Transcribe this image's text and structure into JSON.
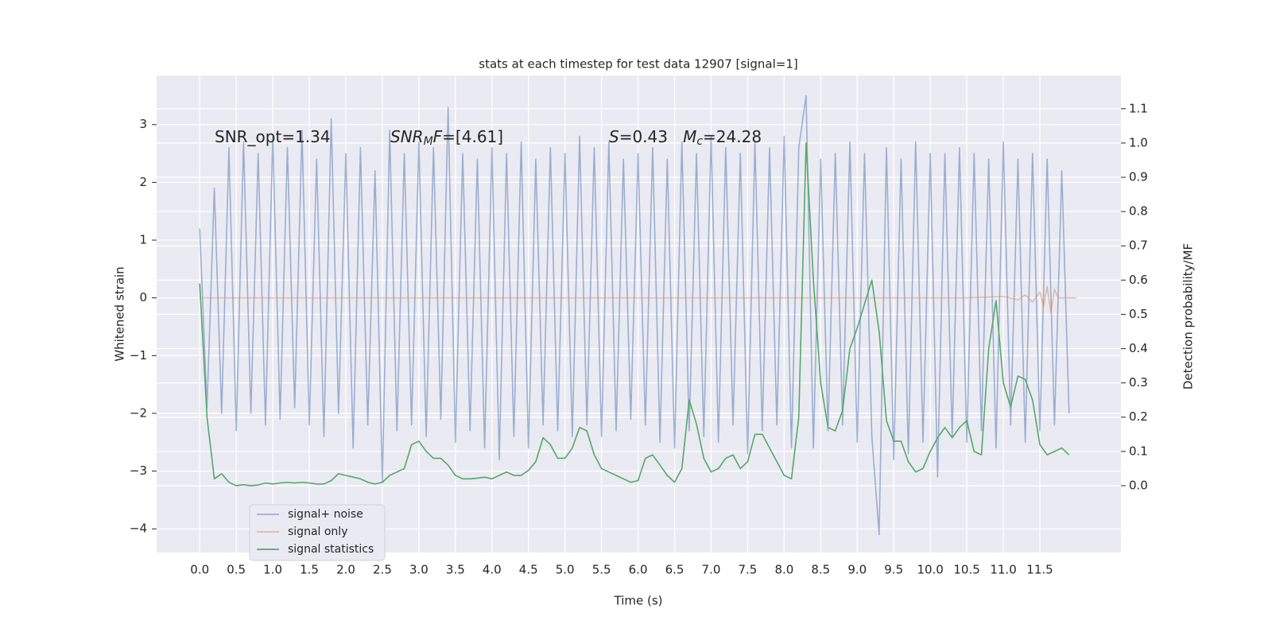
{
  "chart_data": {
    "type": "line",
    "title": "stats at each timestep for test data 12907 [signal=1]",
    "xlabel": "Time (s)",
    "ylabel": "Whitened strain",
    "y2label": "Detection probability/MF",
    "annotations": [
      [
        {
          "text": "SNR_opt=1.34",
          "style": "normal"
        }
      ],
      [
        {
          "text": "SNR",
          "style": "italic"
        },
        {
          "text": "M",
          "style": "sub"
        },
        {
          "text": "F",
          "style": "italic"
        },
        {
          "text": "=[4.61]",
          "style": "normal"
        }
      ],
      [
        {
          "text": "S",
          "style": "italic"
        },
        {
          "text": "=0.43   ",
          "style": "normal"
        },
        {
          "text": "M",
          "style": "italic"
        },
        {
          "text": "c",
          "style": "sub"
        },
        {
          "text": "=24.28",
          "style": "normal"
        }
      ]
    ],
    "xlim": [
      -0.59,
      12.61
    ],
    "ylim": [
      -4.41,
      3.85
    ],
    "y2lim": [
      -0.195,
      1.197
    ],
    "xticks": [
      {
        "value": 0,
        "label": "0.0"
      },
      {
        "value": 0.5,
        "label": "0.5"
      },
      {
        "value": 1,
        "label": "1.0"
      },
      {
        "value": 1.5,
        "label": "1.5"
      },
      {
        "value": 2,
        "label": "2.0"
      },
      {
        "value": 2.5,
        "label": "2.5"
      },
      {
        "value": 3,
        "label": "3.0"
      },
      {
        "value": 3.5,
        "label": "3.5"
      },
      {
        "value": 4,
        "label": "4.0"
      },
      {
        "value": 4.5,
        "label": "4.5"
      },
      {
        "value": 5,
        "label": "5.0"
      },
      {
        "value": 5.5,
        "label": "5.5"
      },
      {
        "value": 6,
        "label": "6.0"
      },
      {
        "value": 6.5,
        "label": "6.5"
      },
      {
        "value": 7,
        "label": "7.0"
      },
      {
        "value": 7.5,
        "label": "7.5"
      },
      {
        "value": 8,
        "label": "8.0"
      },
      {
        "value": 8.5,
        "label": "8.5"
      },
      {
        "value": 9,
        "label": "9.0"
      },
      {
        "value": 9.5,
        "label": "9.5"
      },
      {
        "value": 10,
        "label": "10.0"
      },
      {
        "value": 10.5,
        "label": "10.5"
      },
      {
        "value": 11,
        "label": "11.0"
      },
      {
        "value": 11.5,
        "label": "11.5"
      }
    ],
    "yticks": [
      {
        "value": -4,
        "label": "−4"
      },
      {
        "value": -3,
        "label": "−3"
      },
      {
        "value": -2,
        "label": "−2"
      },
      {
        "value": -1,
        "label": "−1"
      },
      0,
      1,
      2,
      3
    ],
    "y2ticks": [
      {
        "value": 0,
        "label": "0.0"
      },
      {
        "value": 0.1,
        "label": "0.1"
      },
      {
        "value": 0.2,
        "label": "0.2"
      },
      {
        "value": 0.3,
        "label": "0.3"
      },
      {
        "value": 0.4,
        "label": "0.4"
      },
      {
        "value": 0.5,
        "label": "0.5"
      },
      {
        "value": 0.6,
        "label": "0.6"
      },
      {
        "value": 0.7,
        "label": "0.7"
      },
      {
        "value": 0.8,
        "label": "0.8"
      },
      {
        "value": 0.9,
        "label": "0.9"
      },
      {
        "value": 1,
        "label": "1.0"
      },
      {
        "value": 1.1,
        "label": "1.1"
      }
    ],
    "grid": true,
    "legend": "lower left",
    "series": [
      {
        "name": "signal+ noise",
        "color": "#4c72b0",
        "opacity": 0.5,
        "x": [
          0,
          0.1,
          0.2,
          0.3,
          0.4,
          0.5,
          0.6,
          0.7,
          0.8,
          0.9,
          1,
          1.1,
          1.2,
          1.3,
          1.4,
          1.5,
          1.6,
          1.7,
          1.8,
          1.9,
          2,
          2.1,
          2.2,
          2.3,
          2.4,
          2.5,
          2.6,
          2.7,
          2.8,
          2.9,
          3,
          3.1,
          3.2,
          3.3,
          3.4,
          3.5,
          3.6,
          3.7,
          3.8,
          3.9,
          4,
          4.1,
          4.2,
          4.3,
          4.4,
          4.5,
          4.6,
          4.7,
          4.8,
          4.9,
          5,
          5.1,
          5.2,
          5.3,
          5.4,
          5.5,
          5.6,
          5.7,
          5.8,
          5.9,
          6,
          6.1,
          6.2,
          6.3,
          6.4,
          6.5,
          6.6,
          6.7,
          6.8,
          6.9,
          7,
          7.1,
          7.2,
          7.3,
          7.4,
          7.5,
          7.6,
          7.7,
          7.8,
          7.9,
          8,
          8.1,
          8.2,
          8.3,
          8.4,
          8.5,
          8.6,
          8.7,
          8.8,
          8.9,
          9,
          9.1,
          9.2,
          9.3,
          9.4,
          9.5,
          9.6,
          9.7,
          9.8,
          9.9,
          10,
          10.1,
          10.2,
          10.3,
          10.4,
          10.5,
          10.6,
          10.7,
          10.8,
          10.9,
          11,
          11.1,
          11.2,
          11.3,
          11.4,
          11.5,
          11.6,
          11.7,
          11.8,
          11.9
        ],
        "values": [
          1.2,
          -1.9,
          1.9,
          -2.0,
          2.6,
          -2.3,
          2.7,
          -2.0,
          2.5,
          -2.2,
          2.8,
          -2.1,
          2.6,
          -1.9,
          2.9,
          -2.2,
          2.4,
          -2.4,
          3.1,
          -2.0,
          2.5,
          -2.6,
          2.6,
          -2.2,
          2.2,
          -3.2,
          2.9,
          -2.3,
          2.5,
          -2.2,
          2.7,
          -2.4,
          2.6,
          -2.1,
          3.3,
          -2.5,
          2.5,
          -2.3,
          2.4,
          -2.6,
          2.6,
          -2.8,
          2.5,
          -2.4,
          2.7,
          -2.6,
          2.4,
          -2.2,
          2.6,
          -2.3,
          2.5,
          -2.4,
          2.8,
          -2.2,
          2.6,
          -2.4,
          2.7,
          -2.3,
          2.4,
          -2.1,
          2.5,
          -2.2,
          2.6,
          -2.5,
          2.4,
          -2.6,
          2.7,
          -2.3,
          2.5,
          -2.4,
          2.8,
          -2.5,
          2.6,
          -2.2,
          2.5,
          -2.7,
          2.7,
          -2.3,
          2.6,
          -2.2,
          2.8,
          -2.6,
          2.6,
          3.5,
          -2.6,
          2.4,
          -2.3,
          2.5,
          -2.2,
          2.7,
          -2.5,
          2.5,
          -2.4,
          -4.1,
          2.6,
          -2.8,
          2.4,
          -2.7,
          2.7,
          -2.5,
          2.5,
          -3.1,
          2.5,
          -2.4,
          2.6,
          -2.5,
          2.5,
          -2.3,
          2.4,
          -2.6,
          2.7,
          -2.2,
          2.4,
          -2.5,
          2.5,
          -2.3,
          2.4,
          -2.2,
          2.2,
          -2.0
        ]
      },
      {
        "name": "signal only",
        "color": "#dd8452",
        "opacity": 0.5,
        "x": [
          0,
          10.5,
          11.0,
          11.2,
          11.3,
          11.4,
          11.5,
          11.55,
          11.6,
          11.65,
          11.7,
          11.75,
          12.0
        ],
        "values": [
          0,
          0,
          0.02,
          -0.03,
          0.05,
          -0.07,
          0.1,
          -0.15,
          0.2,
          -0.25,
          0.15,
          0,
          0
        ]
      },
      {
        "name": "signal statistics",
        "color": "#55a868",
        "opacity": 1,
        "axis": "y2",
        "x": [
          0,
          0.1,
          0.2,
          0.3,
          0.4,
          0.5,
          0.6,
          0.7,
          0.8,
          0.9,
          1,
          1.1,
          1.2,
          1.3,
          1.4,
          1.5,
          1.6,
          1.7,
          1.8,
          1.9,
          2,
          2.1,
          2.2,
          2.3,
          2.4,
          2.5,
          2.6,
          2.7,
          2.8,
          2.9,
          3,
          3.1,
          3.2,
          3.3,
          3.4,
          3.5,
          3.6,
          3.7,
          3.8,
          3.9,
          4,
          4.1,
          4.2,
          4.3,
          4.4,
          4.5,
          4.6,
          4.7,
          4.8,
          4.9,
          5,
          5.1,
          5.2,
          5.3,
          5.4,
          5.5,
          5.6,
          5.7,
          5.8,
          5.9,
          6,
          6.1,
          6.2,
          6.3,
          6.4,
          6.5,
          6.6,
          6.7,
          6.8,
          6.9,
          7,
          7.1,
          7.2,
          7.3,
          7.4,
          7.5,
          7.6,
          7.7,
          7.8,
          7.9,
          8,
          8.1,
          8.2,
          8.3,
          8.4,
          8.5,
          8.6,
          8.7,
          8.8,
          8.9,
          9,
          9.1,
          9.2,
          9.3,
          9.4,
          9.5,
          9.6,
          9.7,
          9.8,
          9.9,
          10,
          10.1,
          10.2,
          10.3,
          10.4,
          10.5,
          10.6,
          10.7,
          10.8,
          10.9,
          11,
          11.1,
          11.2,
          11.3,
          11.4,
          11.5,
          11.6,
          11.7,
          11.8,
          11.9
        ],
        "values": [
          0.59,
          0.2,
          0.02,
          0.035,
          0.01,
          0.0,
          0.003,
          0.0,
          0.002,
          0.008,
          0.005,
          0.008,
          0.01,
          0.008,
          0.01,
          0.008,
          0.005,
          0.005,
          0.015,
          0.035,
          0.03,
          0.025,
          0.02,
          0.01,
          0.005,
          0.01,
          0.03,
          0.04,
          0.05,
          0.12,
          0.13,
          0.1,
          0.08,
          0.08,
          0.06,
          0.03,
          0.02,
          0.02,
          0.022,
          0.025,
          0.02,
          0.03,
          0.04,
          0.03,
          0.03,
          0.045,
          0.07,
          0.14,
          0.12,
          0.08,
          0.08,
          0.11,
          0.17,
          0.16,
          0.09,
          0.05,
          0.04,
          0.03,
          0.02,
          0.01,
          0.015,
          0.08,
          0.09,
          0.06,
          0.03,
          0.01,
          0.05,
          0.25,
          0.18,
          0.08,
          0.04,
          0.05,
          0.08,
          0.09,
          0.05,
          0.07,
          0.15,
          0.15,
          0.11,
          0.07,
          0.03,
          0.02,
          0.2,
          1.0,
          0.6,
          0.3,
          0.17,
          0.16,
          0.22,
          0.4,
          0.46,
          0.53,
          0.6,
          0.45,
          0.19,
          0.13,
          0.13,
          0.07,
          0.04,
          0.05,
          0.1,
          0.14,
          0.17,
          0.14,
          0.17,
          0.19,
          0.1,
          0.09,
          0.4,
          0.54,
          0.3,
          0.23,
          0.32,
          0.31,
          0.25,
          0.12,
          0.09,
          0.1,
          0.11,
          0.09
        ]
      }
    ]
  }
}
